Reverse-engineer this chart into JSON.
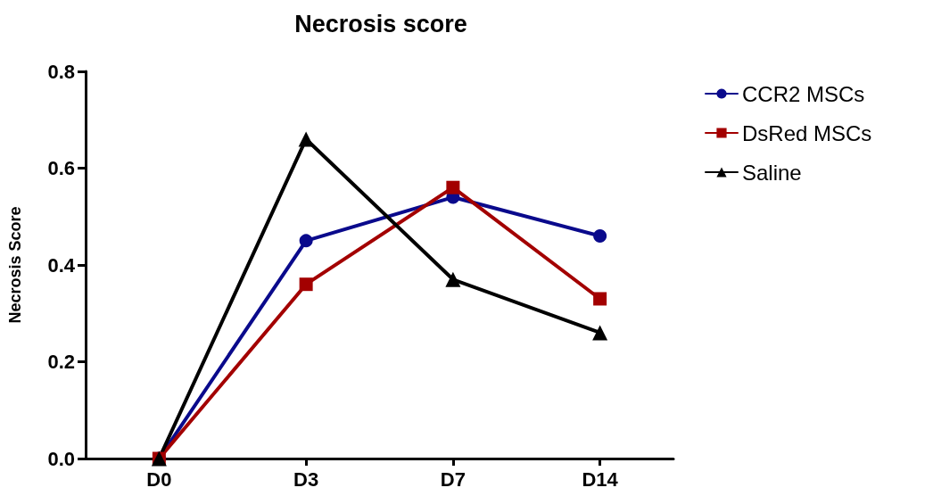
{
  "chart_data": {
    "type": "line",
    "title": "Necrosis score",
    "ylabel": "Necrosis Score",
    "categories": [
      "D0",
      "D3",
      "D7",
      "D14"
    ],
    "series": [
      {
        "name": "CCR2 MSCs",
        "color": "#0a0a8c",
        "marker": "circle",
        "values": [
          0,
          0.45,
          0.54,
          0.46
        ]
      },
      {
        "name": "DsRed MSCs",
        "color": "#a30000",
        "marker": "square",
        "values": [
          0,
          0.36,
          0.56,
          0.33
        ]
      },
      {
        "name": "Saline",
        "color": "#000000",
        "marker": "triangle",
        "values": [
          0,
          0.66,
          0.37,
          0.26
        ]
      }
    ],
    "ylim": [
      0,
      0.8
    ],
    "yticks": [
      {
        "value": 0,
        "label": "0.0"
      },
      {
        "value": 0.2,
        "label": "0.2"
      },
      {
        "value": 0.4,
        "label": "0.4"
      },
      {
        "value": 0.6,
        "label": "0.6"
      },
      {
        "value": 0.8,
        "label": "0.8"
      }
    ],
    "grid": false,
    "legend": "top right",
    "line_style": "solid"
  }
}
